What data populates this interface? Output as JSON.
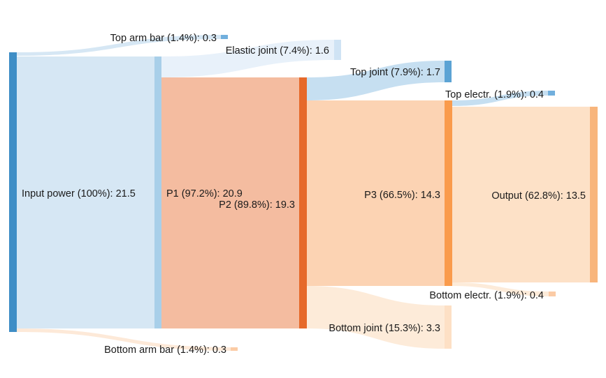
{
  "chart_data": {
    "type": "sankey",
    "title": "",
    "nodes": [
      {
        "id": "input",
        "label": "Input power (100%): 21.5",
        "value": 21.5,
        "color": "#3f8ec6"
      },
      {
        "id": "top_arm",
        "label": "Top arm bar (1.4%): 0.3",
        "value": 0.3,
        "color": "#71afdd"
      },
      {
        "id": "bottom_arm",
        "label": "Bottom arm bar (1.4%): 0.3",
        "value": 0.3,
        "color": "#fbcba5"
      },
      {
        "id": "p1",
        "label": "P1 (97.2%): 20.9",
        "value": 20.9,
        "color": "#a8cfe9"
      },
      {
        "id": "elastic",
        "label": "Elastic joint (7.4%): 1.6",
        "value": 1.6,
        "color": "#cfe3f4"
      },
      {
        "id": "p2",
        "label": "P2 (89.8%): 19.3",
        "value": 19.3,
        "color": "#e6692a"
      },
      {
        "id": "top_joint",
        "label": "Top joint (7.9%): 1.7",
        "value": 1.7,
        "color": "#5ba3d4"
      },
      {
        "id": "p3",
        "label": "P3 (66.5%): 14.3",
        "value": 14.3,
        "color": "#fa9b4c"
      },
      {
        "id": "bottom_joint",
        "label": "Bottom joint (15.3%): 3.3",
        "value": 3.3,
        "color": "#fde0c5"
      },
      {
        "id": "top_electr",
        "label": "Top electr. (1.9%): 0.4",
        "value": 0.4,
        "color": "#71afdd"
      },
      {
        "id": "bottom_electr",
        "label": "Bottom electr. (1.9%): 0.4",
        "value": 0.4,
        "color": "#fbcba5"
      },
      {
        "id": "output",
        "label": "Output (62.8%): 13.5",
        "value": 13.5,
        "color": "#f8b57c"
      }
    ],
    "links": [
      {
        "source": "input",
        "target": "top_arm",
        "value": 0.3,
        "color": "#d6e7f4"
      },
      {
        "source": "input",
        "target": "p1",
        "value": 20.9,
        "color": "#d6e7f4"
      },
      {
        "source": "input",
        "target": "bottom_arm",
        "value": 0.3,
        "color": "#fde9d8"
      },
      {
        "source": "p1",
        "target": "elastic",
        "value": 1.6,
        "color": "#e8f1fa"
      },
      {
        "source": "p1",
        "target": "p2",
        "value": 19.3,
        "color": "#f4bca0"
      },
      {
        "source": "p2",
        "target": "top_joint",
        "value": 1.7,
        "color": "#c6dff1"
      },
      {
        "source": "p2",
        "target": "p3",
        "value": 14.3,
        "color": "#fcd3b3"
      },
      {
        "source": "p2",
        "target": "bottom_joint",
        "value": 3.3,
        "color": "#fdebd9"
      },
      {
        "source": "p3",
        "target": "top_electr",
        "value": 0.4,
        "color": "#c6dff1"
      },
      {
        "source": "p3",
        "target": "output",
        "value": 13.5,
        "color": "#fde1c7"
      },
      {
        "source": "p3",
        "target": "bottom_electr",
        "value": 0.4,
        "color": "#fdebd9"
      }
    ]
  }
}
